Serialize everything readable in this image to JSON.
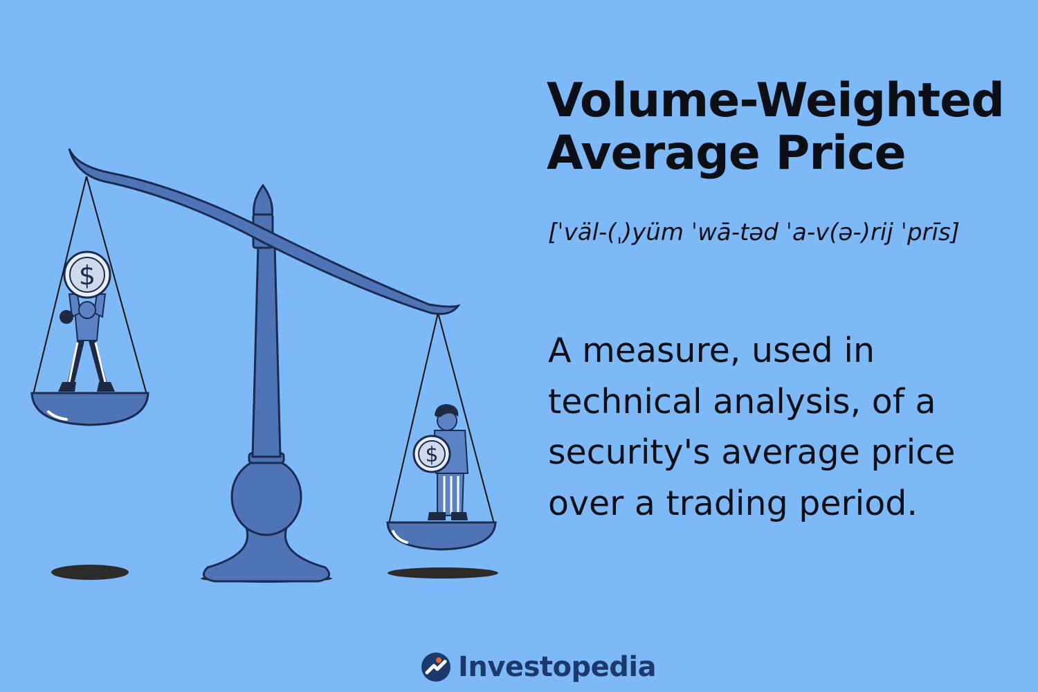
{
  "colors": {
    "background": "#7db8f7",
    "text": "#0d0f17",
    "scale_fill": "#4f74b5",
    "scale_stroke": "#1b2b50",
    "shadow": "#2b2b2b",
    "logo_blue": "#1b3a6b",
    "logo_orange": "#e8672a"
  },
  "title": {
    "line1": "Volume-Weighted",
    "line2": "Average Price"
  },
  "pronunciation": "[ˈväl-(ˌ)yüm ˈwā-təd ˈa-v(ə-)rij ˈprīs]",
  "definition": {
    "lines": [
      "A measure, used in",
      "technical analysis, of a",
      "security's average price",
      "over a trading period."
    ]
  },
  "illustration": {
    "left_coin_symbol": "$",
    "right_coin_symbol": "$"
  },
  "logo": {
    "wordmark": "Investopedia",
    "icon": "investopedia-logo-icon"
  }
}
